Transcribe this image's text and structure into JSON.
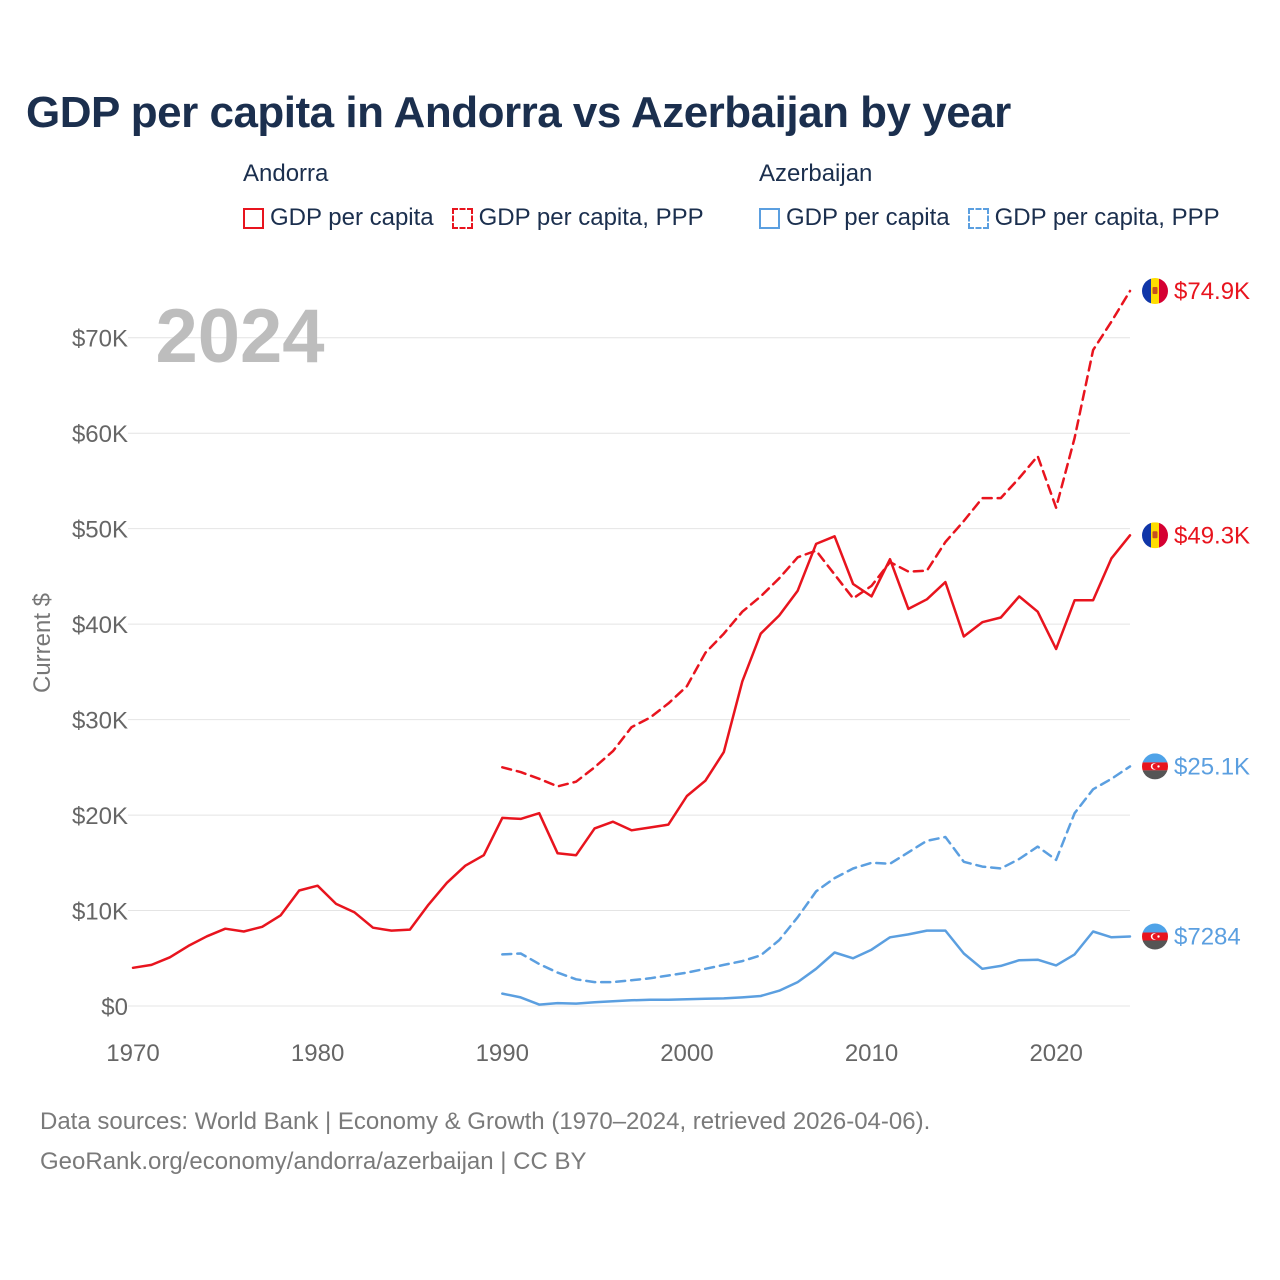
{
  "title": "GDP per capita in Andorra vs Azerbaijan by year",
  "legend": {
    "groups": [
      {
        "country": "Andorra",
        "items": [
          "GDP per capita",
          "GDP per capita, PPP"
        ]
      },
      {
        "country": "Azerbaijan",
        "items": [
          "GDP per capita",
          "GDP per capita, PPP"
        ]
      }
    ]
  },
  "year_label": "2024",
  "footer": {
    "line1": "Data sources: World Bank | Economy & Growth (1970–2024, retrieved 2026-04-06).",
    "line2": "GeoRank.org/economy/andorra/azerbaijan | CC BY"
  },
  "colors": {
    "andorra": "#e8141e",
    "azerbaijan": "#5b9fe0",
    "title": "#1b2f4e",
    "axis_text": "#666666",
    "grid": "#e4e4e4"
  },
  "chart_data": {
    "type": "line",
    "ylabel": "Current $",
    "xlim": [
      1970,
      2024
    ],
    "ylim": [
      0,
      75000
    ],
    "x_ticks": [
      1970,
      1980,
      1990,
      2000,
      2010,
      2020
    ],
    "y_ticks": [
      0,
      10000,
      20000,
      30000,
      40000,
      50000,
      60000,
      70000
    ],
    "y_tick_labels": [
      "$0",
      "$10K",
      "$20K",
      "$30K",
      "$40K",
      "$50K",
      "$60K",
      "$70K"
    ],
    "series": [
      {
        "name": "Andorra GDP per capita",
        "country": "andorra",
        "style": "solid",
        "end_label": "$49.3K",
        "points": [
          [
            1970,
            4000
          ],
          [
            1971,
            4300
          ],
          [
            1972,
            5100
          ],
          [
            1973,
            6300
          ],
          [
            1974,
            7300
          ],
          [
            1975,
            8100
          ],
          [
            1976,
            7800
          ],
          [
            1977,
            8300
          ],
          [
            1978,
            9500
          ],
          [
            1979,
            12100
          ],
          [
            1980,
            12600
          ],
          [
            1981,
            10700
          ],
          [
            1982,
            9800
          ],
          [
            1983,
            8200
          ],
          [
            1984,
            7900
          ],
          [
            1985,
            8000
          ],
          [
            1986,
            10600
          ],
          [
            1987,
            12900
          ],
          [
            1988,
            14700
          ],
          [
            1989,
            15800
          ],
          [
            1990,
            19700
          ],
          [
            1991,
            19600
          ],
          [
            1992,
            20200
          ],
          [
            1993,
            16000
          ],
          [
            1994,
            15800
          ],
          [
            1995,
            18600
          ],
          [
            1996,
            19300
          ],
          [
            1997,
            18400
          ],
          [
            1998,
            18700
          ],
          [
            1999,
            19000
          ],
          [
            2000,
            22000
          ],
          [
            2001,
            23600
          ],
          [
            2002,
            26600
          ],
          [
            2003,
            34000
          ],
          [
            2004,
            39000
          ],
          [
            2005,
            40900
          ],
          [
            2006,
            43500
          ],
          [
            2007,
            48400
          ],
          [
            2008,
            49200
          ],
          [
            2009,
            44200
          ],
          [
            2010,
            42900
          ],
          [
            2011,
            46800
          ],
          [
            2012,
            41600
          ],
          [
            2013,
            42600
          ],
          [
            2014,
            44400
          ],
          [
            2015,
            38700
          ],
          [
            2016,
            40200
          ],
          [
            2017,
            40700
          ],
          [
            2018,
            42900
          ],
          [
            2019,
            41300
          ],
          [
            2020,
            37400
          ],
          [
            2021,
            42500
          ],
          [
            2022,
            42500
          ],
          [
            2023,
            46900
          ],
          [
            2024,
            49300
          ]
        ]
      },
      {
        "name": "Andorra GDP per capita, PPP",
        "country": "andorra",
        "style": "dashed",
        "end_label": "$74.9K",
        "points": [
          [
            1990,
            25000
          ],
          [
            1991,
            24500
          ],
          [
            1992,
            23800
          ],
          [
            1993,
            23000
          ],
          [
            1994,
            23500
          ],
          [
            1995,
            25000
          ],
          [
            1996,
            26700
          ],
          [
            1997,
            29200
          ],
          [
            1998,
            30200
          ],
          [
            1999,
            31700
          ],
          [
            2000,
            33500
          ],
          [
            2001,
            37000
          ],
          [
            2002,
            39000
          ],
          [
            2003,
            41300
          ],
          [
            2004,
            42900
          ],
          [
            2005,
            44800
          ],
          [
            2006,
            47000
          ],
          [
            2007,
            47700
          ],
          [
            2008,
            45200
          ],
          [
            2009,
            42700
          ],
          [
            2010,
            44000
          ],
          [
            2011,
            46500
          ],
          [
            2012,
            45500
          ],
          [
            2013,
            45600
          ],
          [
            2014,
            48600
          ],
          [
            2015,
            50800
          ],
          [
            2016,
            53200
          ],
          [
            2017,
            53200
          ],
          [
            2018,
            55300
          ],
          [
            2019,
            57600
          ],
          [
            2020,
            52200
          ],
          [
            2021,
            59500
          ],
          [
            2022,
            68700
          ],
          [
            2023,
            71700
          ],
          [
            2024,
            74900
          ]
        ]
      },
      {
        "name": "Azerbaijan GDP per capita",
        "country": "azerbaijan",
        "style": "solid",
        "end_label": "$7284",
        "points": [
          [
            1990,
            1300
          ],
          [
            1991,
            900
          ],
          [
            1992,
            150
          ],
          [
            1993,
            300
          ],
          [
            1994,
            250
          ],
          [
            1995,
            400
          ],
          [
            1996,
            500
          ],
          [
            1997,
            600
          ],
          [
            1998,
            650
          ],
          [
            1999,
            650
          ],
          [
            2000,
            700
          ],
          [
            2001,
            750
          ],
          [
            2002,
            800
          ],
          [
            2003,
            900
          ],
          [
            2004,
            1050
          ],
          [
            2005,
            1600
          ],
          [
            2006,
            2500
          ],
          [
            2007,
            3900
          ],
          [
            2008,
            5600
          ],
          [
            2009,
            5000
          ],
          [
            2010,
            5900
          ],
          [
            2011,
            7200
          ],
          [
            2012,
            7500
          ],
          [
            2013,
            7900
          ],
          [
            2014,
            7900
          ],
          [
            2015,
            5500
          ],
          [
            2016,
            3900
          ],
          [
            2017,
            4200
          ],
          [
            2018,
            4800
          ],
          [
            2019,
            4850
          ],
          [
            2020,
            4250
          ],
          [
            2021,
            5400
          ],
          [
            2022,
            7800
          ],
          [
            2023,
            7200
          ],
          [
            2024,
            7284
          ]
        ]
      },
      {
        "name": "Azerbaijan GDP per capita, PPP",
        "country": "azerbaijan",
        "style": "dashed",
        "end_label": "$25.1K",
        "points": [
          [
            1990,
            5400
          ],
          [
            1991,
            5500
          ],
          [
            1992,
            4400
          ],
          [
            1993,
            3500
          ],
          [
            1994,
            2800
          ],
          [
            1995,
            2500
          ],
          [
            1996,
            2500
          ],
          [
            1997,
            2700
          ],
          [
            1998,
            2900
          ],
          [
            1999,
            3200
          ],
          [
            2000,
            3500
          ],
          [
            2001,
            3900
          ],
          [
            2002,
            4300
          ],
          [
            2003,
            4700
          ],
          [
            2004,
            5300
          ],
          [
            2005,
            6900
          ],
          [
            2006,
            9300
          ],
          [
            2007,
            12000
          ],
          [
            2008,
            13400
          ],
          [
            2009,
            14400
          ],
          [
            2010,
            15000
          ],
          [
            2011,
            14900
          ],
          [
            2012,
            16100
          ],
          [
            2013,
            17300
          ],
          [
            2014,
            17700
          ],
          [
            2015,
            15100
          ],
          [
            2016,
            14600
          ],
          [
            2017,
            14400
          ],
          [
            2018,
            15400
          ],
          [
            2019,
            16700
          ],
          [
            2020,
            15300
          ],
          [
            2021,
            20200
          ],
          [
            2022,
            22700
          ],
          [
            2023,
            23800
          ],
          [
            2024,
            25100
          ]
        ]
      }
    ]
  }
}
